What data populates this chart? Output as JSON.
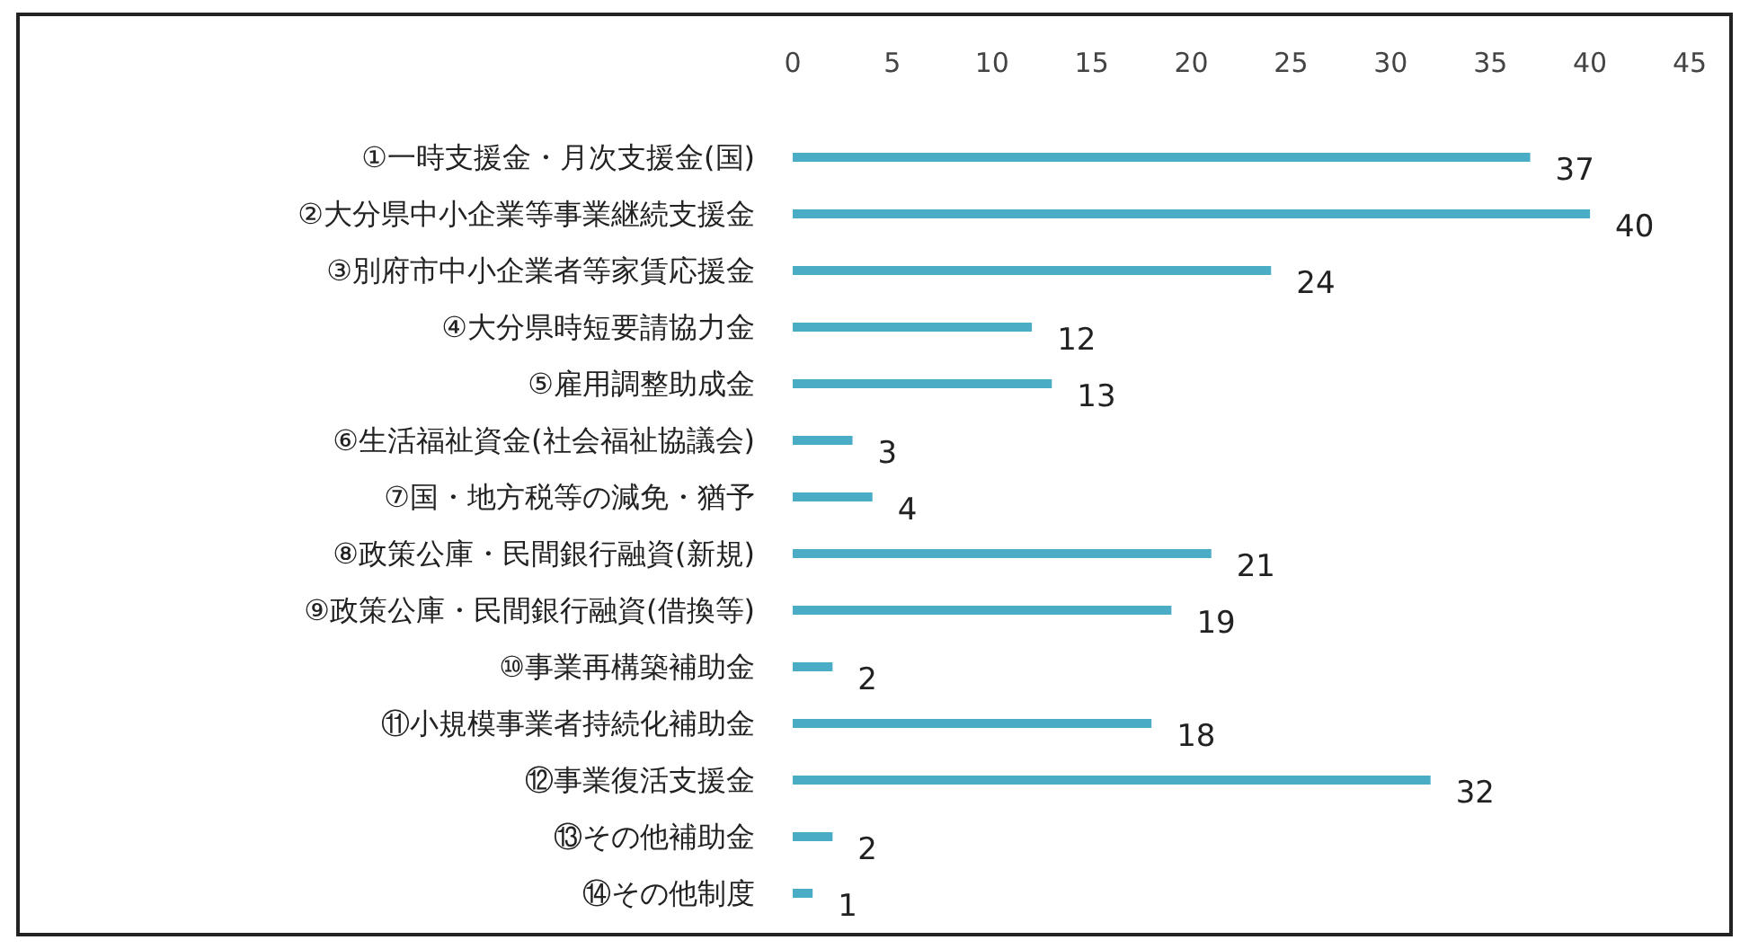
{
  "chart_data": {
    "type": "bar",
    "orientation": "horizontal",
    "categories": [
      "①一時支援金・月次支援金(国)",
      "②大分県中小企業等事業継続支援金",
      "③別府市中小企業者等家賃応援金",
      "④大分県時短要請協力金",
      "⑤雇用調整助成金",
      "⑥生活福祉資金(社会福祉協議会)",
      "⑦国・地方税等の減免・猶予",
      "⑧政策公庫・民間銀行融資(新規)",
      "⑨政策公庫・民間銀行融資(借換等)",
      "⑩事業再構築補助金",
      "⑪小規模事業者持続化補助金",
      "⑫事業復活支援金",
      "⑬その他補助金",
      "⑭その他制度"
    ],
    "values": [
      37,
      40,
      24,
      12,
      13,
      3,
      4,
      21,
      19,
      2,
      18,
      32,
      2,
      1
    ],
    "color": "#4bacc6",
    "xlim": [
      0,
      45
    ],
    "xticks": [
      0,
      5,
      10,
      15,
      20,
      25,
      30,
      35,
      40,
      45
    ],
    "data_labels": true
  }
}
